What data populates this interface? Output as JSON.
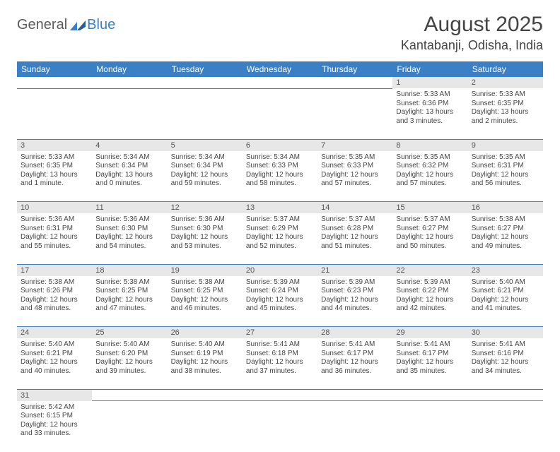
{
  "colors": {
    "header_bg": "#3b7fc4",
    "header_text": "#ffffff",
    "daynum_bg": "#e7e7e7",
    "cell_border": "#3b7fc4",
    "body_text": "#444444",
    "logo_gray": "#5b5b5b",
    "logo_blue": "#3b7fc4",
    "page_bg": "#ffffff"
  },
  "logo": {
    "text1": "General",
    "text2": "Blue"
  },
  "title": "August 2025",
  "location": "Kantabanji, Odisha, India",
  "weekdays": [
    "Sunday",
    "Monday",
    "Tuesday",
    "Wednesday",
    "Thursday",
    "Friday",
    "Saturday"
  ],
  "layout": {
    "columns": 7,
    "rows": 6,
    "first_weekday_index": 5,
    "days_in_month": 31
  },
  "typography": {
    "month_title_pt": 30,
    "location_pt": 18,
    "weekday_header_pt": 12,
    "daynum_pt": 11,
    "detail_pt": 10
  },
  "days": {
    "1": {
      "sunrise": "5:33 AM",
      "sunset": "6:36 PM",
      "daylight": "13 hours and 3 minutes."
    },
    "2": {
      "sunrise": "5:33 AM",
      "sunset": "6:35 PM",
      "daylight": "13 hours and 2 minutes."
    },
    "3": {
      "sunrise": "5:33 AM",
      "sunset": "6:35 PM",
      "daylight": "13 hours and 1 minute."
    },
    "4": {
      "sunrise": "5:34 AM",
      "sunset": "6:34 PM",
      "daylight": "13 hours and 0 minutes."
    },
    "5": {
      "sunrise": "5:34 AM",
      "sunset": "6:34 PM",
      "daylight": "12 hours and 59 minutes."
    },
    "6": {
      "sunrise": "5:34 AM",
      "sunset": "6:33 PM",
      "daylight": "12 hours and 58 minutes."
    },
    "7": {
      "sunrise": "5:35 AM",
      "sunset": "6:33 PM",
      "daylight": "12 hours and 57 minutes."
    },
    "8": {
      "sunrise": "5:35 AM",
      "sunset": "6:32 PM",
      "daylight": "12 hours and 57 minutes."
    },
    "9": {
      "sunrise": "5:35 AM",
      "sunset": "6:31 PM",
      "daylight": "12 hours and 56 minutes."
    },
    "10": {
      "sunrise": "5:36 AM",
      "sunset": "6:31 PM",
      "daylight": "12 hours and 55 minutes."
    },
    "11": {
      "sunrise": "5:36 AM",
      "sunset": "6:30 PM",
      "daylight": "12 hours and 54 minutes."
    },
    "12": {
      "sunrise": "5:36 AM",
      "sunset": "6:30 PM",
      "daylight": "12 hours and 53 minutes."
    },
    "13": {
      "sunrise": "5:37 AM",
      "sunset": "6:29 PM",
      "daylight": "12 hours and 52 minutes."
    },
    "14": {
      "sunrise": "5:37 AM",
      "sunset": "6:28 PM",
      "daylight": "12 hours and 51 minutes."
    },
    "15": {
      "sunrise": "5:37 AM",
      "sunset": "6:27 PM",
      "daylight": "12 hours and 50 minutes."
    },
    "16": {
      "sunrise": "5:38 AM",
      "sunset": "6:27 PM",
      "daylight": "12 hours and 49 minutes."
    },
    "17": {
      "sunrise": "5:38 AM",
      "sunset": "6:26 PM",
      "daylight": "12 hours and 48 minutes."
    },
    "18": {
      "sunrise": "5:38 AM",
      "sunset": "6:25 PM",
      "daylight": "12 hours and 47 minutes."
    },
    "19": {
      "sunrise": "5:38 AM",
      "sunset": "6:25 PM",
      "daylight": "12 hours and 46 minutes."
    },
    "20": {
      "sunrise": "5:39 AM",
      "sunset": "6:24 PM",
      "daylight": "12 hours and 45 minutes."
    },
    "21": {
      "sunrise": "5:39 AM",
      "sunset": "6:23 PM",
      "daylight": "12 hours and 44 minutes."
    },
    "22": {
      "sunrise": "5:39 AM",
      "sunset": "6:22 PM",
      "daylight": "12 hours and 42 minutes."
    },
    "23": {
      "sunrise": "5:40 AM",
      "sunset": "6:21 PM",
      "daylight": "12 hours and 41 minutes."
    },
    "24": {
      "sunrise": "5:40 AM",
      "sunset": "6:21 PM",
      "daylight": "12 hours and 40 minutes."
    },
    "25": {
      "sunrise": "5:40 AM",
      "sunset": "6:20 PM",
      "daylight": "12 hours and 39 minutes."
    },
    "26": {
      "sunrise": "5:40 AM",
      "sunset": "6:19 PM",
      "daylight": "12 hours and 38 minutes."
    },
    "27": {
      "sunrise": "5:41 AM",
      "sunset": "6:18 PM",
      "daylight": "12 hours and 37 minutes."
    },
    "28": {
      "sunrise": "5:41 AM",
      "sunset": "6:17 PM",
      "daylight": "12 hours and 36 minutes."
    },
    "29": {
      "sunrise": "5:41 AM",
      "sunset": "6:17 PM",
      "daylight": "12 hours and 35 minutes."
    },
    "30": {
      "sunrise": "5:41 AM",
      "sunset": "6:16 PM",
      "daylight": "12 hours and 34 minutes."
    },
    "31": {
      "sunrise": "5:42 AM",
      "sunset": "6:15 PM",
      "daylight": "12 hours and 33 minutes."
    }
  },
  "labels": {
    "sunrise": "Sunrise: ",
    "sunset": "Sunset: ",
    "daylight": "Daylight: "
  }
}
